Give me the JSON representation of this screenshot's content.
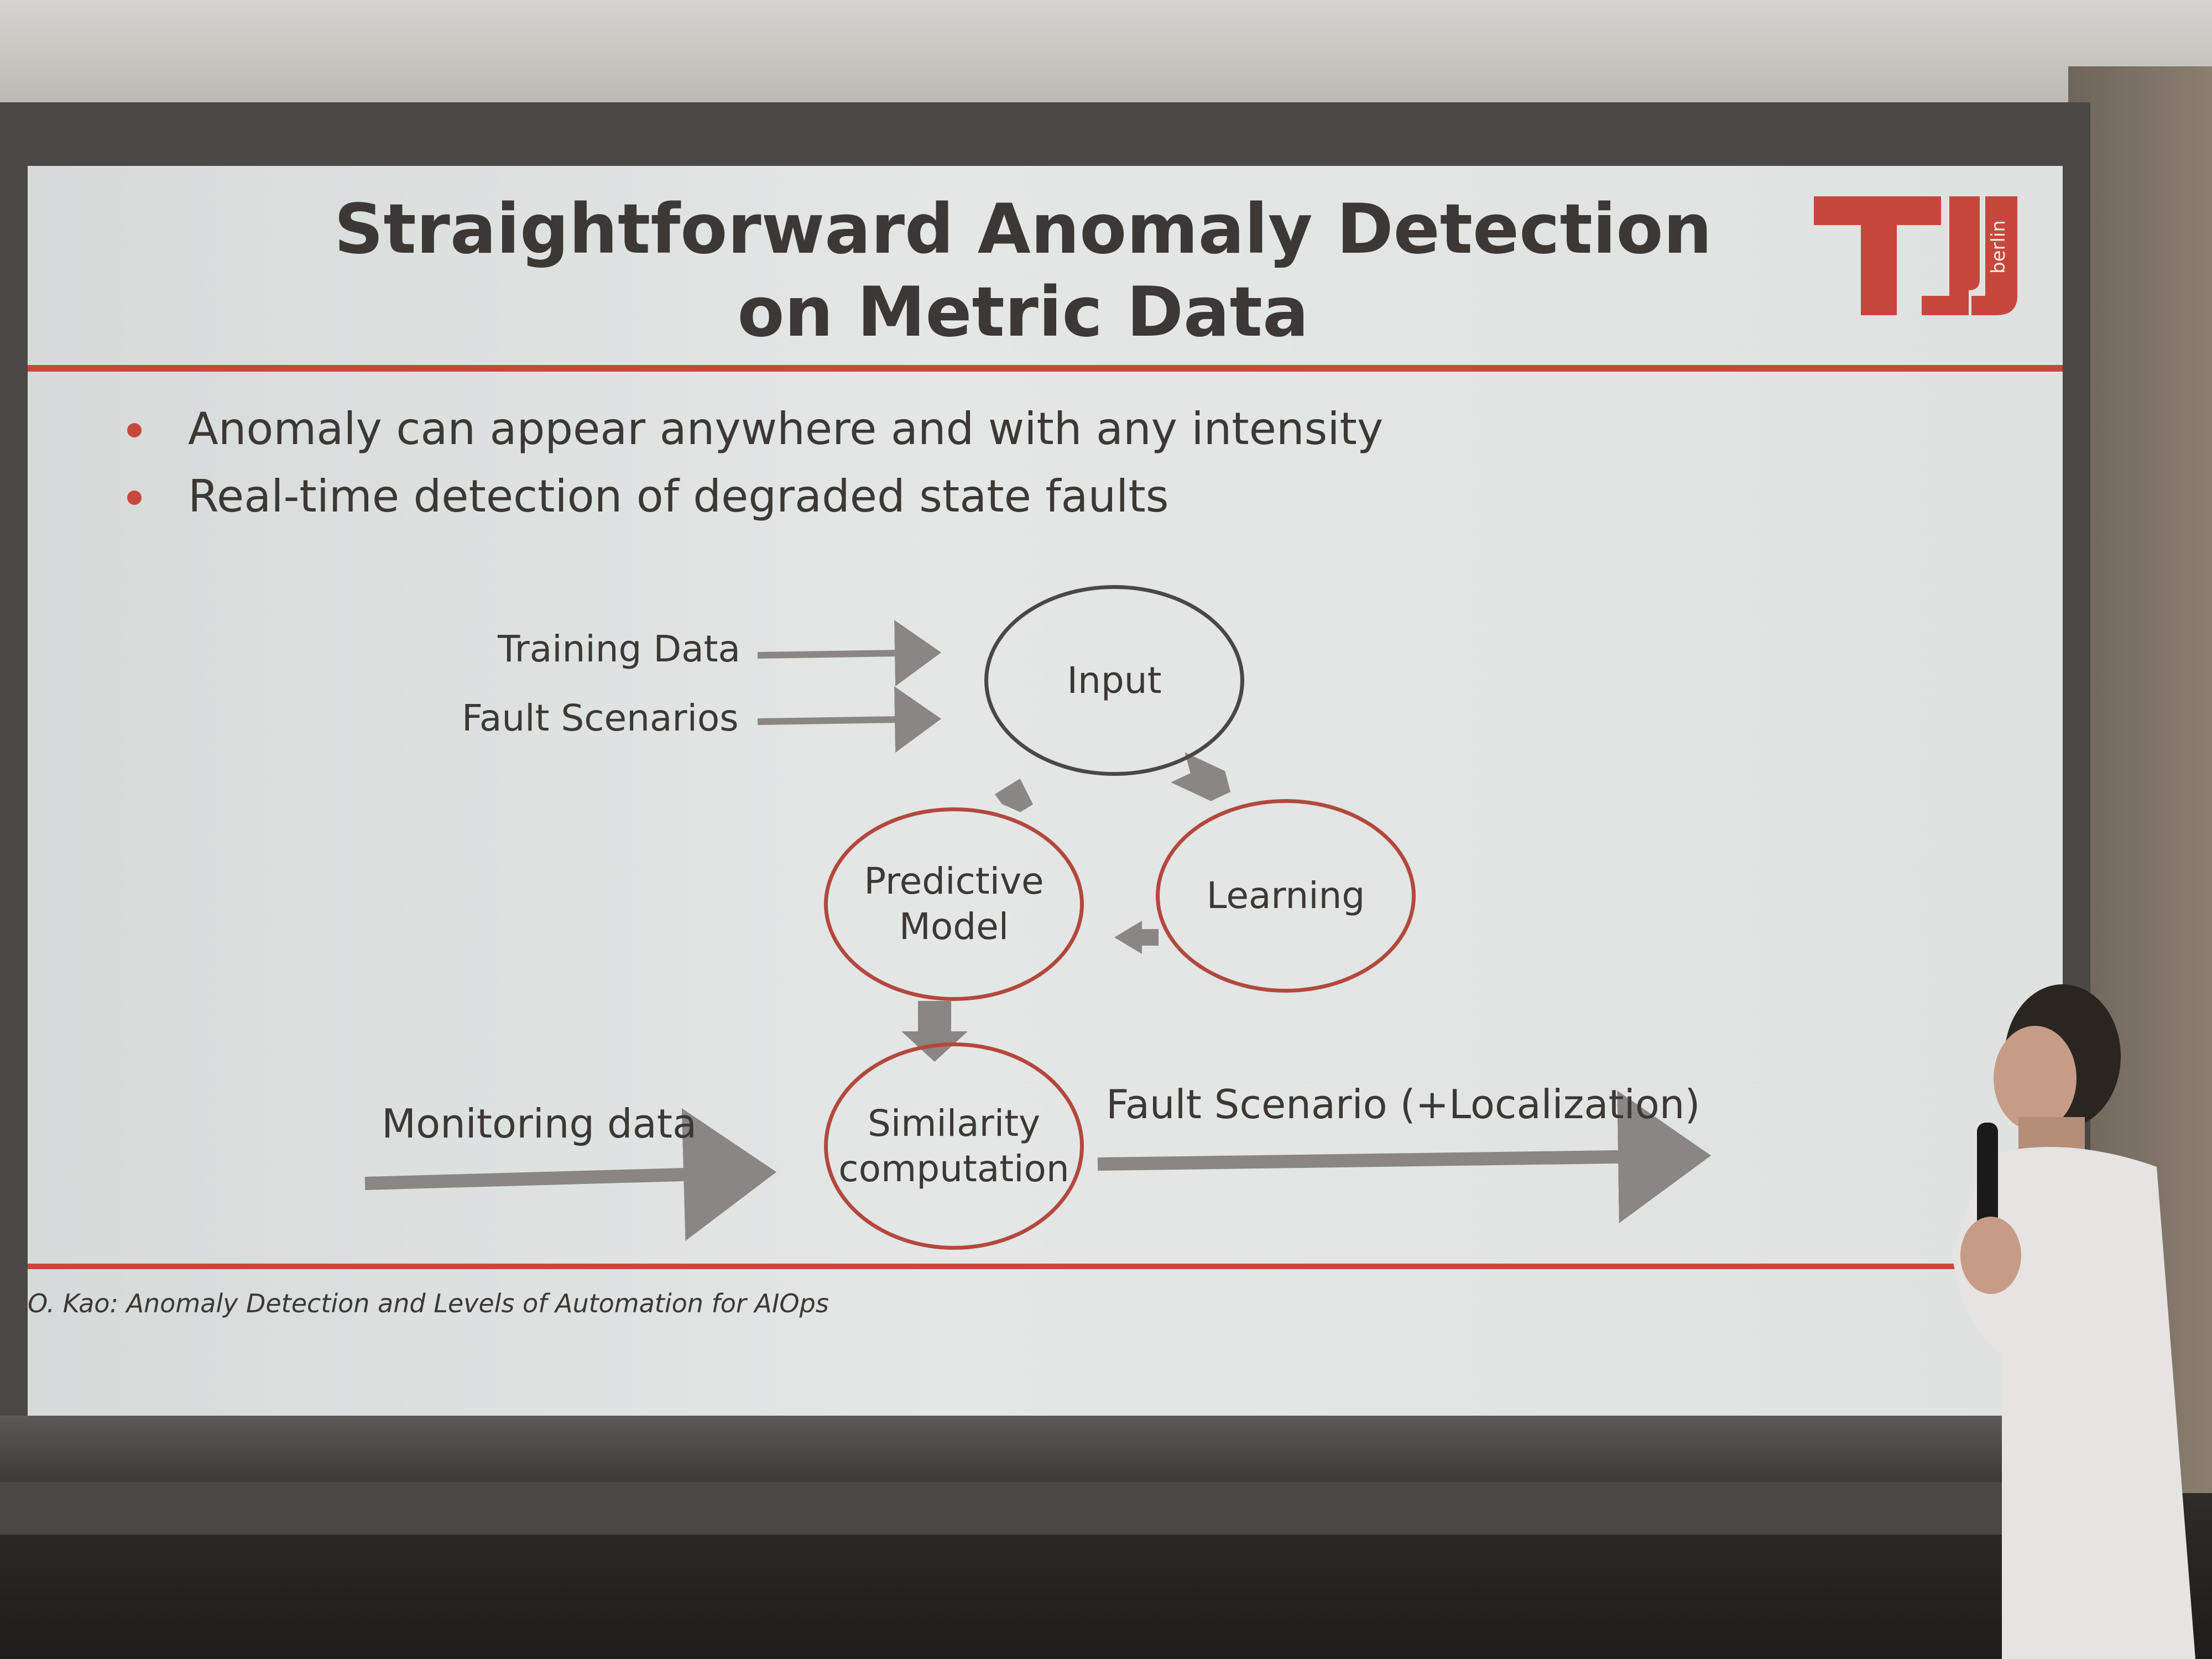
{
  "slide": {
    "title_line1": "Straightforward Anomaly Detection",
    "title_line2": "on Metric Data",
    "logo_text": "berlin",
    "bullets": [
      "Anomaly can appear anywhere and with any intensity",
      "Real-time detection of degraded state faults"
    ],
    "footer": "O. Kao: Anomaly Detection and Levels of Automation for AIOps",
    "colors": {
      "accent_red": "#c8473c",
      "text_dark": "#3b3836",
      "arrow_grey": "#8a8683"
    }
  },
  "diagram": {
    "inputs": [
      "Training Data",
      "Fault Scenarios"
    ],
    "nodes": {
      "input": "Input",
      "learning": "Learning",
      "predictive_model_line1": "Predictive",
      "predictive_model_line2": "Model",
      "similarity_line1": "Similarity",
      "similarity_line2": "computation"
    },
    "monitoring_label": "Monitoring data",
    "output_label": "Fault Scenario (+Localization)"
  }
}
